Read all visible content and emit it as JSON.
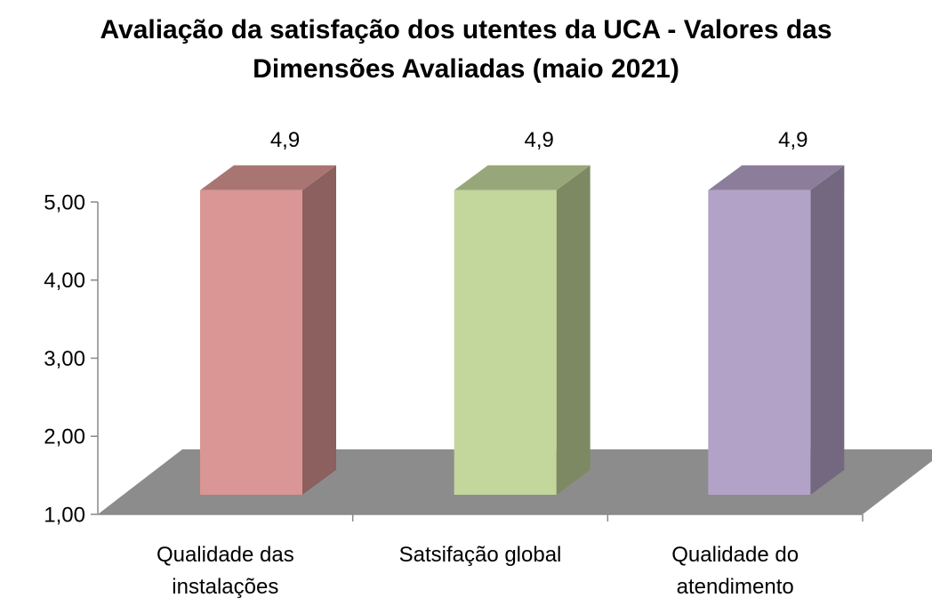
{
  "chart_data": {
    "type": "bar3d",
    "title": "Avaliação da satisfação dos utentes da UCA - Valores das Dimensões Avaliadas (maio 2021)",
    "categories": [
      "Qualidade das instalações",
      "Satsifação global",
      "Qualidade do atendimento"
    ],
    "values": [
      4.9,
      4.9,
      4.9
    ],
    "value_labels": [
      "4,9",
      "4,9",
      "4,9"
    ],
    "colors": [
      "#d99694",
      "#c3d69b",
      "#b3a2c7"
    ],
    "ylim": [
      1,
      5
    ],
    "yticks": [
      {
        "value": 1,
        "label": "1,00"
      },
      {
        "value": 2,
        "label": "2,00"
      },
      {
        "value": 3,
        "label": "3,00"
      },
      {
        "value": 4,
        "label": "4,00"
      },
      {
        "value": 5,
        "label": "5,00"
      }
    ],
    "grid": false
  }
}
